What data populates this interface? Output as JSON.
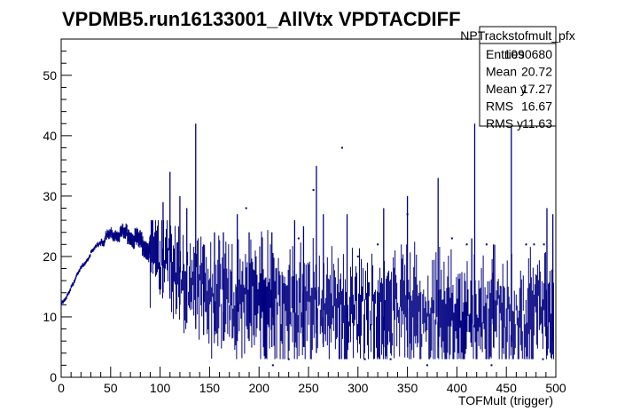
{
  "chart_data": {
    "type": "scatter",
    "title": "VPDMB5.run16133001_AllVtx VPDTACDIFF",
    "xlabel": "TOFMult (trigger)",
    "ylabel": "",
    "xlim": [
      0,
      500
    ],
    "ylim": [
      0,
      56
    ],
    "x_ticks": [
      0,
      50,
      100,
      150,
      200,
      250,
      300,
      350,
      400,
      450,
      500
    ],
    "y_ticks": [
      0,
      10,
      20,
      30,
      40,
      50
    ],
    "grid": false,
    "color": "#000080",
    "stats": {
      "name": "NPTrackstofmult_pfx",
      "rows": [
        {
          "label": "Entries",
          "value": "1090680"
        },
        {
          "label": "Mean",
          "value": "20.72"
        },
        {
          "label": "Mean y",
          "value": "17.27"
        },
        {
          "label": "RMS",
          "value": "16.67"
        },
        {
          "label": "RMS y",
          "value": "11.63"
        }
      ]
    },
    "profile_ramp": {
      "x": [
        0,
        5,
        10,
        20,
        30,
        40,
        50,
        60,
        70,
        80,
        90
      ],
      "y": [
        12,
        13,
        15,
        18,
        20.5,
        22.5,
        23.5,
        24,
        23.5,
        22.5,
        21
      ]
    },
    "spikes": [
      {
        "x": 103,
        "low": 14,
        "high": 29
      },
      {
        "x": 110,
        "low": 13,
        "high": 34
      },
      {
        "x": 120,
        "low": 12,
        "high": 30
      },
      {
        "x": 127,
        "low": 9,
        "high": 28
      },
      {
        "x": 136,
        "low": 8,
        "high": 42
      },
      {
        "x": 144,
        "low": 7,
        "high": 22
      },
      {
        "x": 155,
        "low": 7,
        "high": 24
      },
      {
        "x": 164,
        "low": 6,
        "high": 24
      },
      {
        "x": 178,
        "low": 6,
        "high": 27
      },
      {
        "x": 190,
        "low": 6,
        "high": 24
      },
      {
        "x": 213,
        "low": 5,
        "high": 24
      },
      {
        "x": 236,
        "low": 5,
        "high": 26
      },
      {
        "x": 245,
        "low": 5,
        "high": 25
      },
      {
        "x": 258,
        "low": 4,
        "high": 35
      },
      {
        "x": 265,
        "low": 5,
        "high": 27
      },
      {
        "x": 289,
        "low": 5,
        "high": 27
      },
      {
        "x": 326,
        "low": 5,
        "high": 28
      },
      {
        "x": 350,
        "low": 5,
        "high": 30
      },
      {
        "x": 381,
        "low": 5,
        "high": 33
      },
      {
        "x": 415,
        "low": 5,
        "high": 23
      },
      {
        "x": 418,
        "low": 10,
        "high": 42
      },
      {
        "x": 437,
        "low": 5,
        "high": 22
      },
      {
        "x": 455,
        "low": 5,
        "high": 47
      },
      {
        "x": 491,
        "low": 4,
        "high": 28
      },
      {
        "x": 497,
        "low": 6,
        "high": 27
      }
    ],
    "isolated_points": [
      {
        "x": 187,
        "y": 28
      },
      {
        "x": 240,
        "y": 23
      },
      {
        "x": 255,
        "y": 31
      },
      {
        "x": 284,
        "y": 38
      },
      {
        "x": 300,
        "y": 20
      },
      {
        "x": 320,
        "y": 22
      },
      {
        "x": 350,
        "y": 27
      },
      {
        "x": 395,
        "y": 23
      },
      {
        "x": 410,
        "y": 22
      },
      {
        "x": 430,
        "y": 22
      },
      {
        "x": 470,
        "y": 22
      },
      {
        "x": 478,
        "y": 22
      },
      {
        "x": 488,
        "y": 22
      },
      {
        "x": 214,
        "y": 2
      },
      {
        "x": 230,
        "y": 3
      },
      {
        "x": 307,
        "y": 3
      },
      {
        "x": 333,
        "y": 3
      },
      {
        "x": 370,
        "y": 2
      },
      {
        "x": 435,
        "y": 2
      },
      {
        "x": 487,
        "y": 3
      }
    ]
  }
}
